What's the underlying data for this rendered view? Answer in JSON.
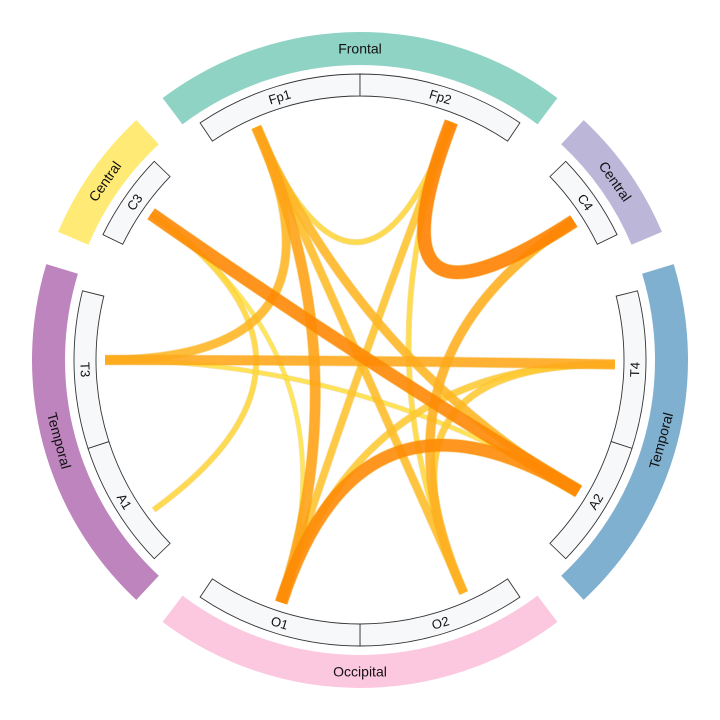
{
  "regions": [
    {
      "label": "Frontal",
      "color": "#8fd3c5",
      "start": -37,
      "end": 37
    },
    {
      "label": "Central",
      "color": "#bcb6d8",
      "start": 43,
      "end": 67
    },
    {
      "label": "Temporal",
      "color": "#80b0d0",
      "start": 73,
      "end": 137
    },
    {
      "label": "Occipital",
      "color": "#fbc8df",
      "start": 143,
      "end": 217
    },
    {
      "label": "Temporal",
      "color": "#bd84bd",
      "start": 223,
      "end": 287
    },
    {
      "label": "Central",
      "color": "#feea75",
      "start": 293,
      "end": 317
    }
  ],
  "electrodes": [
    {
      "id": "Fp1",
      "label": "Fp1",
      "start": -34,
      "end": 0,
      "anchor": -24
    },
    {
      "id": "Fp2",
      "label": "Fp2",
      "start": 0,
      "end": 34,
      "anchor": 21
    },
    {
      "id": "C4",
      "label": "C4",
      "start": 46,
      "end": 64,
      "anchor": 57
    },
    {
      "id": "T4",
      "label": "T4",
      "start": 76,
      "end": 108,
      "anchor": 91
    },
    {
      "id": "A2",
      "label": "A2",
      "start": 108,
      "end": 134,
      "anchor": 121
    },
    {
      "id": "O2",
      "label": "O2",
      "start": 146,
      "end": 180,
      "anchor": 156
    },
    {
      "id": "O1",
      "label": "O1",
      "start": 180,
      "end": 214,
      "anchor": 198
    },
    {
      "id": "A1",
      "label": "A1",
      "start": 226,
      "end": 252,
      "anchor": 234
    },
    {
      "id": "T3",
      "label": "T3",
      "start": 252,
      "end": 284,
      "anchor": 270
    },
    {
      "id": "C3",
      "label": "C3",
      "start": 296,
      "end": 314,
      "anchor": 305
    }
  ],
  "connections": [
    {
      "source": "Fp2",
      "target": "C4",
      "weight": 0.95
    },
    {
      "source": "C3",
      "target": "A2",
      "weight": 0.9
    },
    {
      "source": "O1",
      "target": "A2",
      "weight": 0.88
    },
    {
      "source": "Fp1",
      "target": "O1",
      "weight": 0.7
    },
    {
      "source": "T3",
      "target": "T4",
      "weight": 0.65
    },
    {
      "source": "C4",
      "target": "O2",
      "weight": 0.6
    },
    {
      "source": "Fp1",
      "target": "A2",
      "weight": 0.55
    },
    {
      "source": "T3",
      "target": "Fp1",
      "weight": 0.55
    },
    {
      "source": "Fp1",
      "target": "O2",
      "weight": 0.5
    },
    {
      "source": "Fp2",
      "target": "O1",
      "weight": 0.45
    },
    {
      "source": "T4",
      "target": "O1",
      "weight": 0.4
    },
    {
      "source": "T4",
      "target": "O2",
      "weight": 0.4
    },
    {
      "source": "Fp1",
      "target": "Fp2",
      "weight": 0.3
    },
    {
      "source": "C3",
      "target": "A1",
      "weight": 0.3
    },
    {
      "source": "Fp2",
      "target": "O2",
      "weight": 0.28
    },
    {
      "source": "T3",
      "target": "A2",
      "weight": 0.22
    },
    {
      "source": "C3",
      "target": "O1",
      "weight": 0.2
    }
  ]
}
